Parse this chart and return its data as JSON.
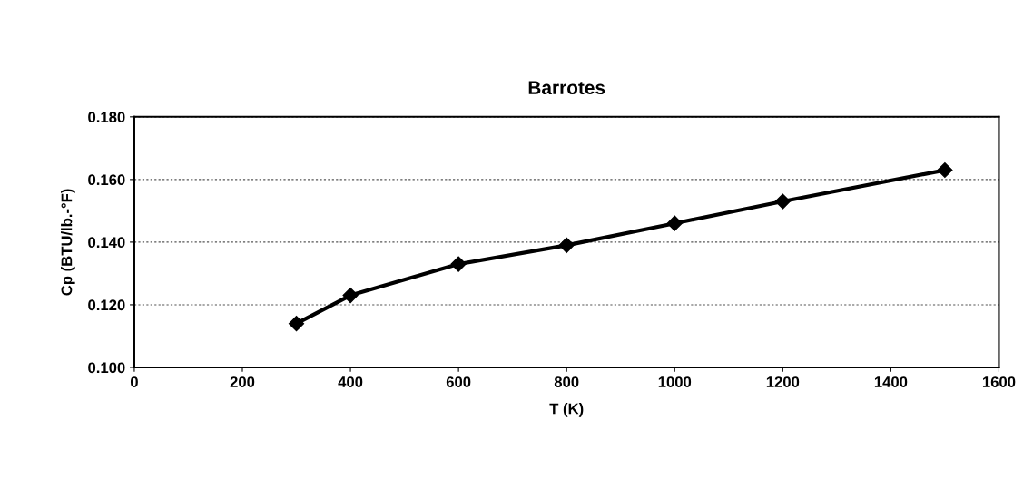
{
  "chart_data": {
    "type": "line",
    "title": "Barrotes",
    "xlabel": "T (K)",
    "ylabel": "Cp (BTU/lb.-°F)",
    "x": [
      300,
      400,
      600,
      800,
      1000,
      1200,
      1500
    ],
    "series": [
      {
        "color": "#000000",
        "values": [
          0.114,
          0.123,
          0.133,
          0.139,
          0.146,
          0.153,
          0.163
        ]
      }
    ],
    "xlim": [
      0,
      1600
    ],
    "xticks": [
      0,
      200,
      400,
      600,
      800,
      1000,
      1200,
      1400,
      1600
    ],
    "ylim": [
      0.1,
      0.18
    ],
    "yticks": [
      {
        "value": 0.1,
        "label": "0.100"
      },
      {
        "value": 0.12,
        "label": "0.120"
      },
      {
        "value": 0.14,
        "label": "0.140"
      },
      {
        "value": 0.16,
        "label": "0.160"
      },
      {
        "value": 0.18,
        "label": "0.180"
      }
    ],
    "grid": "y",
    "marker": "diamond",
    "line_style": "solid",
    "legend": false
  }
}
